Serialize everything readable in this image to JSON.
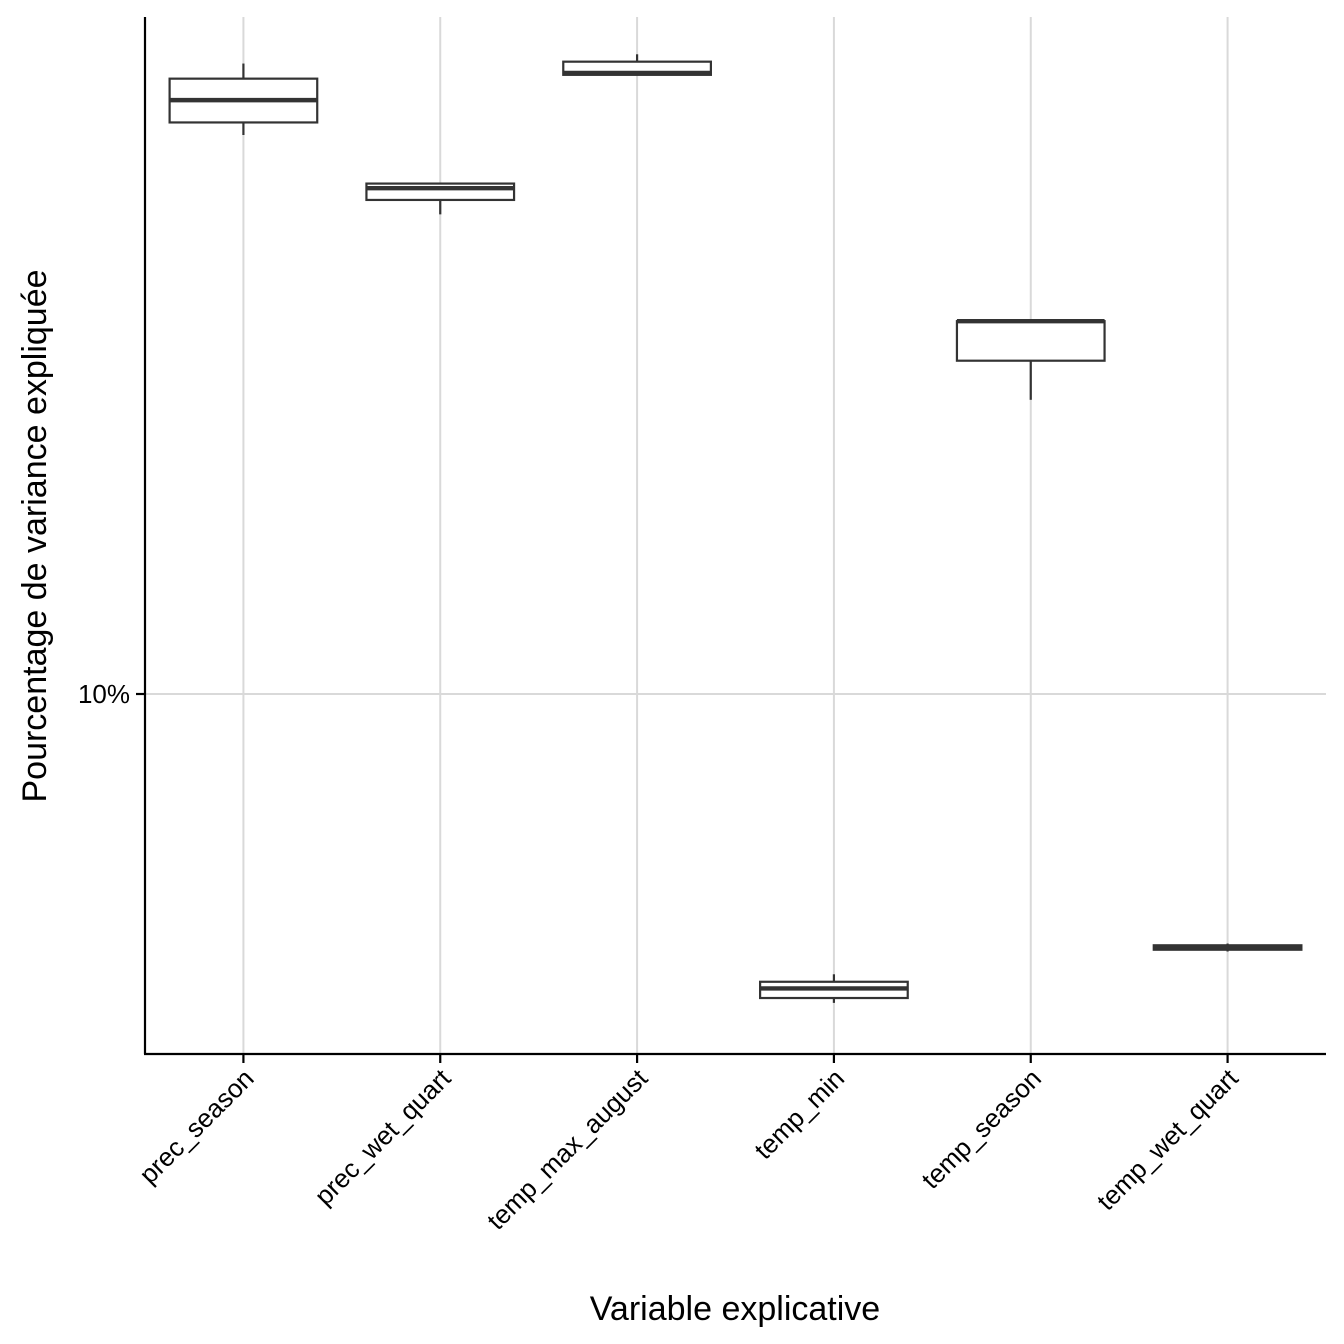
{
  "chart_data": {
    "type": "boxplot",
    "title": "",
    "xlabel": "Variable explicative",
    "ylabel": "Pourcentage de variance expliquée",
    "y_scale": "log10",
    "ylim": [
      5.3,
      33.0
    ],
    "y_ticks": [
      10
    ],
    "y_tick_labels": [
      "10%"
    ],
    "grid": true,
    "categories": [
      "prec_season",
      "prec_wet_quart",
      "temp_max_august",
      "temp_min",
      "temp_season",
      "temp_wet_quart"
    ],
    "series": [
      {
        "boxes": [
          {
            "category": "prec_season",
            "whisker_low": 26.8,
            "q1": 27.4,
            "median": 28.5,
            "q3": 29.6,
            "whisker_high": 30.4
          },
          {
            "category": "prec_wet_quart",
            "whisker_low": 23.3,
            "q1": 23.9,
            "median": 24.4,
            "q3": 24.6,
            "whisker_high": 24.6
          },
          {
            "category": "temp_max_august",
            "whisker_low": 29.8,
            "q1": 29.8,
            "median": 29.9,
            "q3": 30.5,
            "whisker_high": 30.9
          },
          {
            "category": "temp_min",
            "whisker_low": 5.8,
            "q1": 5.85,
            "median": 5.95,
            "q3": 6.02,
            "whisker_high": 6.1
          },
          {
            "category": "temp_season",
            "whisker_low": 16.8,
            "q1": 18.0,
            "median": 19.3,
            "q3": 19.3,
            "whisker_high": 19.3
          },
          {
            "category": "temp_wet_quart",
            "whisker_low": 6.35,
            "q1": 6.37,
            "median": 6.4,
            "q3": 6.42,
            "whisker_high": 6.44
          }
        ]
      }
    ]
  }
}
